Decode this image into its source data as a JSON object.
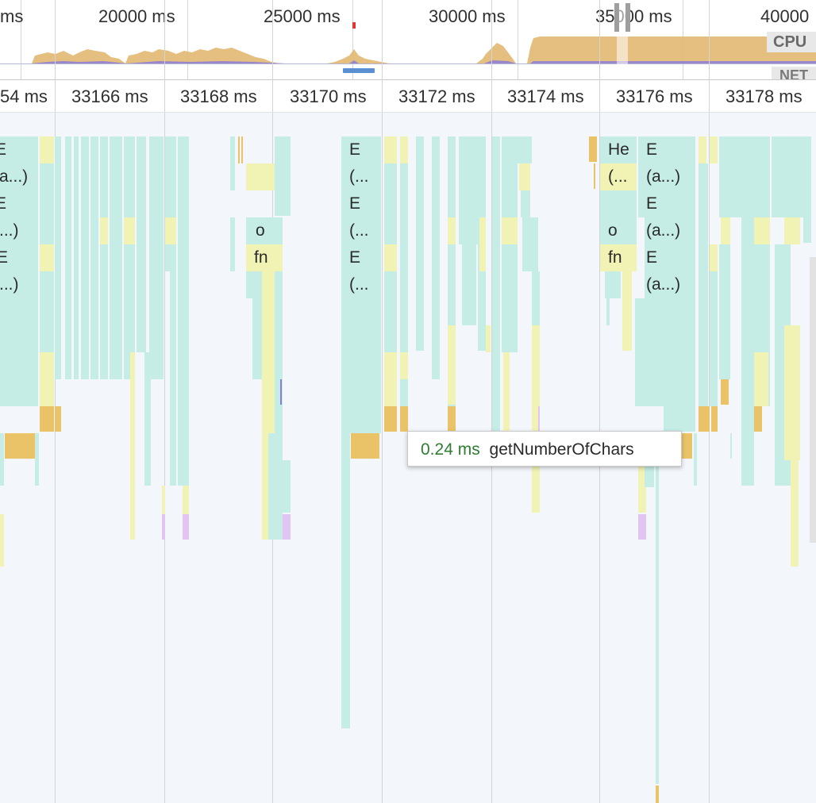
{
  "overview": {
    "labels": [
      "ms",
      "20000 ms",
      "25000 ms",
      "30000 ms",
      "35000 ms",
      "40000"
    ],
    "cpu_label": "CPU",
    "net_label": "NET"
  },
  "timeline": {
    "labels": [
      "54 ms",
      "33166 ms",
      "33168 ms",
      "33170 ms",
      "33172 ms",
      "33174 ms",
      "33176 ms",
      "33178 ms"
    ]
  },
  "colors": {
    "js_teal": "#c5ede6",
    "yellow": "#f1f3b4",
    "orange": "#eac368",
    "purple": "#e2c4f2"
  },
  "frames": {
    "col_left": [
      "E",
      "(a...)",
      "E",
      "(...)",
      "E",
      "(...)"
    ],
    "col_o": "o",
    "col_fn": "fn",
    "col_mid": [
      "E",
      "(...",
      "E",
      "(...",
      "E",
      "(..."
    ],
    "col_he": [
      "He",
      "(...",
      "o",
      "fn"
    ],
    "col_right": [
      "E",
      "(a...)",
      "E",
      "(a...)",
      "E",
      "(a...)"
    ]
  },
  "tooltip": {
    "duration": "0.24 ms",
    "name": "getNumberOfChars"
  }
}
